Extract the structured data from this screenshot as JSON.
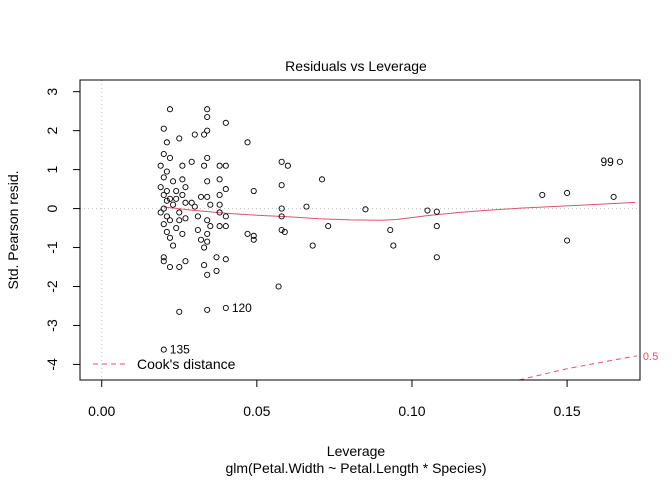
{
  "chart_data": {
    "type": "scatter",
    "title": "Residuals vs Leverage",
    "xlabel": "Leverage",
    "ylabel": "Std. Pearson resid.",
    "subtitle": "glm(Petal.Width ~ Petal.Length * Species)",
    "xlim": [
      -0.007,
      0.1735
    ],
    "ylim": [
      -4.4,
      3.3
    ],
    "x_ticks": [
      "0.00",
      "0.05",
      "0.10",
      "0.15"
    ],
    "x_tick_values": [
      0.0,
      0.05,
      0.1,
      0.15
    ],
    "y_ticks": [
      "3",
      "2",
      "1",
      "0",
      "-1",
      "-2",
      "-3",
      "-4"
    ],
    "y_tick_values": [
      3,
      2,
      1,
      0,
      -1,
      -2,
      -3,
      -4
    ],
    "grid": false,
    "reference_lines": [
      {
        "axis": "x",
        "value": 0,
        "style": "dotted",
        "color": "#bebebe"
      },
      {
        "axis": "y",
        "value": 0,
        "style": "dotted",
        "color": "#bebebe"
      }
    ],
    "points": [
      [
        0.02,
        2.05
      ],
      [
        0.022,
        2.55
      ],
      [
        0.021,
        1.7
      ],
      [
        0.02,
        1.4
      ],
      [
        0.022,
        1.3
      ],
      [
        0.025,
        1.8
      ],
      [
        0.019,
        1.1
      ],
      [
        0.021,
        0.95
      ],
      [
        0.02,
        0.8
      ],
      [
        0.023,
        0.7
      ],
      [
        0.019,
        0.55
      ],
      [
        0.021,
        0.45
      ],
      [
        0.02,
        0.35
      ],
      [
        0.022,
        0.25
      ],
      [
        0.021,
        0.2
      ],
      [
        0.023,
        0.1
      ],
      [
        0.02,
        0.0
      ],
      [
        0.019,
        -0.1
      ],
      [
        0.021,
        -0.2
      ],
      [
        0.022,
        -0.3
      ],
      [
        0.02,
        -0.4
      ],
      [
        0.021,
        -0.6
      ],
      [
        0.022,
        -0.75
      ],
      [
        0.023,
        -0.95
      ],
      [
        0.02,
        -1.25
      ],
      [
        0.02,
        -1.35
      ],
      [
        0.022,
        -1.5
      ],
      [
        0.025,
        -1.5
      ],
      [
        0.027,
        -1.35
      ],
      [
        0.024,
        -0.5
      ],
      [
        0.026,
        -0.65
      ],
      [
        0.025,
        -0.1
      ],
      [
        0.027,
        0.15
      ],
      [
        0.026,
        0.35
      ],
      [
        0.027,
        0.55
      ],
      [
        0.026,
        0.75
      ],
      [
        0.026,
        1.1
      ],
      [
        0.024,
        0.25
      ],
      [
        0.025,
        -0.3
      ],
      [
        0.024,
        0.45
      ],
      [
        0.027,
        -0.25
      ],
      [
        0.025,
        -2.65
      ],
      [
        0.02,
        -3.62
      ],
      [
        0.03,
        1.9
      ],
      [
        0.029,
        1.2
      ],
      [
        0.029,
        0.15
      ],
      [
        0.03,
        0.05
      ],
      [
        0.031,
        -0.2
      ],
      [
        0.031,
        -0.55
      ],
      [
        0.032,
        -0.8
      ],
      [
        0.032,
        0.3
      ],
      [
        0.033,
        -1.0
      ],
      [
        0.033,
        -1.45
      ],
      [
        0.034,
        2.55
      ],
      [
        0.034,
        2.35
      ],
      [
        0.034,
        2.0
      ],
      [
        0.033,
        1.9
      ],
      [
        0.034,
        1.3
      ],
      [
        0.033,
        1.1
      ],
      [
        0.034,
        0.7
      ],
      [
        0.034,
        0.3
      ],
      [
        0.034,
        -0.3
      ],
      [
        0.034,
        -0.65
      ],
      [
        0.034,
        -0.85
      ],
      [
        0.034,
        -1.7
      ],
      [
        0.034,
        -2.6
      ],
      [
        0.035,
        0.1
      ],
      [
        0.035,
        -0.45
      ],
      [
        0.038,
        1.1
      ],
      [
        0.038,
        0.75
      ],
      [
        0.038,
        0.35
      ],
      [
        0.038,
        0.1
      ],
      [
        0.038,
        -0.1
      ],
      [
        0.038,
        -0.45
      ],
      [
        0.037,
        -1.6
      ],
      [
        0.037,
        -1.25
      ],
      [
        0.04,
        2.2
      ],
      [
        0.04,
        1.1
      ],
      [
        0.04,
        0.5
      ],
      [
        0.04,
        -0.2
      ],
      [
        0.04,
        -0.45
      ],
      [
        0.04,
        -1.3
      ],
      [
        0.04,
        -2.55
      ],
      [
        0.047,
        1.7
      ],
      [
        0.047,
        -0.65
      ],
      [
        0.049,
        -0.8
      ],
      [
        0.049,
        0.45
      ],
      [
        0.049,
        -0.7
      ],
      [
        0.057,
        -2.0
      ],
      [
        0.058,
        1.2
      ],
      [
        0.058,
        0.6
      ],
      [
        0.058,
        0.0
      ],
      [
        0.058,
        -0.2
      ],
      [
        0.058,
        -0.55
      ],
      [
        0.059,
        -0.6
      ],
      [
        0.06,
        1.1
      ],
      [
        0.066,
        0.05
      ],
      [
        0.068,
        -0.95
      ],
      [
        0.071,
        0.75
      ],
      [
        0.073,
        -0.45
      ],
      [
        0.085,
        -0.02
      ],
      [
        0.093,
        -0.55
      ],
      [
        0.094,
        -0.95
      ],
      [
        0.105,
        -0.05
      ],
      [
        0.108,
        -0.08
      ],
      [
        0.108,
        -0.45
      ],
      [
        0.108,
        -1.25
      ],
      [
        0.142,
        0.35
      ],
      [
        0.15,
        0.4
      ],
      [
        0.15,
        -0.82
      ],
      [
        0.165,
        0.3
      ],
      [
        0.167,
        1.2
      ]
    ],
    "smooth_line": [
      [
        0.02,
        0.04
      ],
      [
        0.03,
        -0.05
      ],
      [
        0.04,
        -0.12
      ],
      [
        0.05,
        -0.17
      ],
      [
        0.06,
        -0.21
      ],
      [
        0.07,
        -0.26
      ],
      [
        0.08,
        -0.29
      ],
      [
        0.09,
        -0.3
      ],
      [
        0.095,
        -0.28
      ],
      [
        0.105,
        -0.18
      ],
      [
        0.115,
        -0.1
      ],
      [
        0.125,
        -0.04
      ],
      [
        0.135,
        0.01
      ],
      [
        0.145,
        0.05
      ],
      [
        0.155,
        0.09
      ],
      [
        0.165,
        0.13
      ],
      [
        0.172,
        0.16
      ]
    ],
    "smooth_color": "#df536b",
    "cooks_line": [
      [
        0.1345,
        -4.4
      ],
      [
        0.15,
        -4.11
      ],
      [
        0.16,
        -3.96
      ],
      [
        0.1725,
        -3.78
      ]
    ],
    "cooks_color": "#df536b",
    "cooks_level_label": "0.5",
    "point_labels": [
      {
        "text": "99",
        "x": 0.167,
        "y": 1.2,
        "side": "left"
      },
      {
        "text": "120",
        "x": 0.04,
        "y": -2.55,
        "side": "right"
      },
      {
        "text": "135",
        "x": 0.02,
        "y": -3.62,
        "side": "right"
      }
    ],
    "legend": {
      "label": "Cook's distance",
      "position": "bottom-left",
      "line_style": "dashed",
      "color": "#df536b"
    }
  }
}
